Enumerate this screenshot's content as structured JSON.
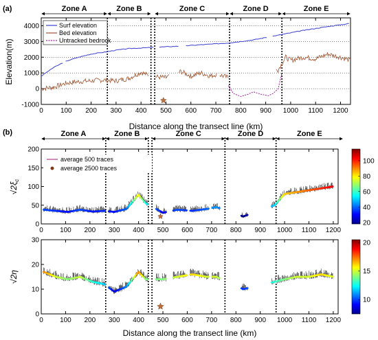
{
  "chart_data": [
    {
      "panel": "(a)",
      "type": "line",
      "xlabel": "Distance along the transect line (km)",
      "ylabel": "Elevation(m)",
      "xlim": [
        0,
        1240
      ],
      "ylim": [
        -1000,
        4500
      ],
      "xticks": [
        0,
        100,
        200,
        300,
        400,
        500,
        600,
        700,
        800,
        900,
        1000,
        1100,
        1200
      ],
      "yticks": [
        -1000,
        0,
        1000,
        2000,
        3000,
        4000
      ],
      "grid": "horizontal dotted",
      "legend_position": "top-left",
      "zones": [
        {
          "label": "Zone A",
          "start": 0,
          "end": 265
        },
        {
          "label": "Zone B",
          "start": 265,
          "end": 440
        },
        {
          "label": "Zone C",
          "start": 455,
          "end": 755
        },
        {
          "label": "Zone D",
          "start": 755,
          "end": 965
        },
        {
          "label": "Zone E",
          "start": 965,
          "end": 1240
        }
      ],
      "zone_boundaries": [
        265,
        440,
        455,
        755,
        965
      ],
      "star": {
        "x": 490,
        "y": -750
      },
      "series": [
        {
          "name": "Surf elevation",
          "color": "#3a3fd0",
          "x": [
            0,
            50,
            100,
            150,
            200,
            265,
            300,
            350,
            420,
            480,
            550,
            650,
            750,
            850,
            950,
            1050,
            1150,
            1240
          ],
          "y": [
            800,
            1350,
            1750,
            2000,
            2200,
            2350,
            2450,
            2550,
            2600,
            2650,
            2700,
            2800,
            2900,
            3100,
            3400,
            3700,
            3950,
            4150
          ]
        },
        {
          "name": "Bed elevation",
          "color": "#a0522d",
          "x": [
            0,
            50,
            100,
            150,
            200,
            250,
            300,
            350,
            400,
            420,
            460,
            500,
            560,
            600,
            640,
            680,
            700,
            720,
            750,
            950,
            980,
            1000,
            1050,
            1100,
            1150,
            1200,
            1240
          ],
          "y": [
            0,
            100,
            350,
            450,
            500,
            550,
            500,
            650,
            1050,
            900,
            750,
            700,
            1100,
            800,
            1000,
            800,
            900,
            850,
            700,
            1200,
            2000,
            1800,
            2000,
            1900,
            2200,
            2000,
            1800
          ]
        },
        {
          "name": "Untracked bedrock",
          "color": "#a020a0",
          "x": [
            750,
            770,
            800,
            830,
            850,
            880,
            910,
            930,
            950,
            965
          ],
          "y": [
            200,
            -300,
            -500,
            -350,
            -200,
            -350,
            -450,
            -300,
            0,
            1000
          ]
        }
      ]
    },
    {
      "panel": "(b) upper",
      "type": "line",
      "xlabel": "",
      "ylim": [
        0,
        200
      ],
      "xlim": [
        0,
        1220
      ],
      "xticks": [
        0,
        100,
        200,
        300,
        400,
        500,
        600,
        700,
        800,
        900,
        1000,
        1100,
        1200
      ],
      "yticks": [
        0,
        50,
        100,
        150,
        200
      ],
      "legend_position": "top-left",
      "colorbar_ticks": [
        20,
        40,
        60,
        80,
        100
      ],
      "star": {
        "x": 490,
        "y": 20
      },
      "series": [
        {
          "name": "average 500 traces",
          "x": [
            10,
            60,
            110,
            160,
            210,
            260,
            300,
            350,
            400,
            430,
            500,
            560,
            620,
            680,
            720,
            830,
            960,
            1000,
            1050,
            1100,
            1150,
            1200
          ],
          "y": [
            38,
            35,
            32,
            38,
            33,
            35,
            32,
            40,
            78,
            55,
            30,
            38,
            35,
            40,
            45,
            20,
            50,
            80,
            85,
            90,
            95,
            100
          ]
        },
        {
          "name": "average 2500 traces",
          "x": [
            490
          ],
          "y": [
            20
          ]
        }
      ]
    },
    {
      "panel": "(b) lower",
      "type": "line",
      "xlabel": "Distance  along  the  transect  line  (km)",
      "ylim": [
        0,
        30
      ],
      "xlim": [
        0,
        1220
      ],
      "xticks": [
        0,
        100,
        200,
        300,
        400,
        500,
        600,
        700,
        800,
        900,
        1000,
        1100,
        1200
      ],
      "yticks": [
        0,
        10,
        20,
        30
      ],
      "colorbar_ticks": [
        10,
        15,
        20
      ],
      "star": {
        "x": 490,
        "y": 3
      },
      "series": [
        {
          "name": "",
          "x": [
            10,
            60,
            110,
            160,
            210,
            260,
            300,
            350,
            400,
            430,
            500,
            560,
            620,
            680,
            720,
            830,
            960,
            1000,
            1050,
            1100,
            1150,
            1200
          ],
          "y": [
            17,
            15,
            14,
            15,
            13,
            12,
            9,
            11,
            17,
            14,
            14,
            15,
            16,
            15,
            15,
            10,
            13,
            14,
            15,
            15,
            16,
            15
          ]
        }
      ]
    }
  ],
  "labels": {
    "panel_a": "(a)",
    "panel_b": "(b)",
    "ylabel_b_upper": "√2ξ",
    "ylabel_b_upper_sub": "c",
    "ylabel_b_lower": "√2η"
  }
}
